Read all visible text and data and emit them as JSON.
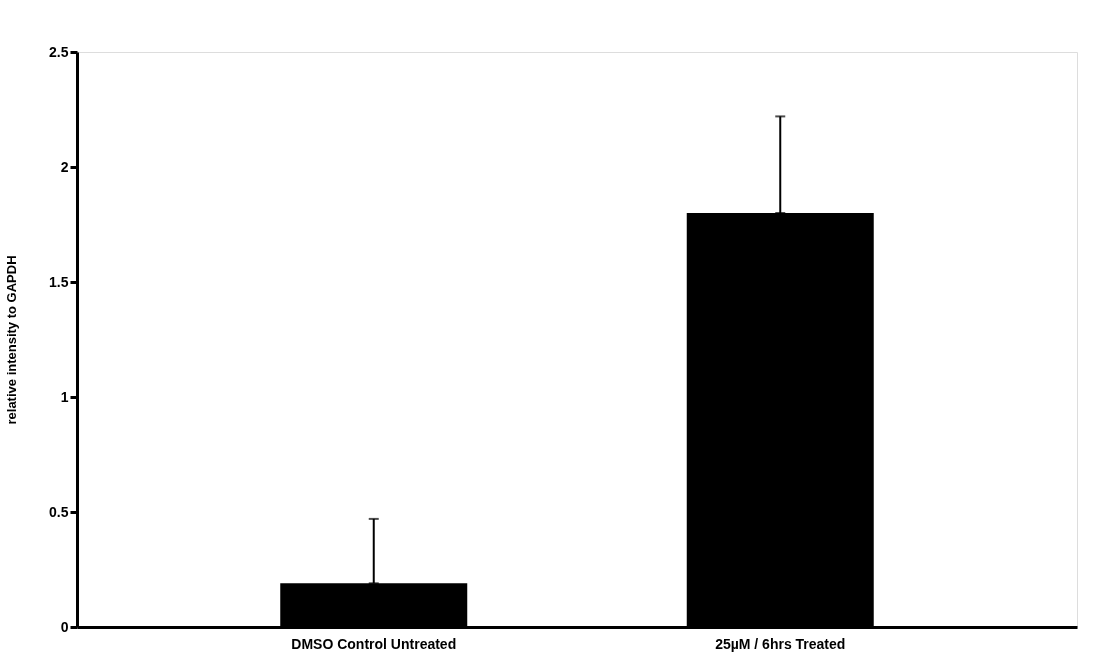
{
  "chart_data": {
    "type": "bar",
    "ylabel": "relative intensity to GAPDH",
    "categories": [
      "DMSO Control Untreated",
      "25µM / 6hrs Treated"
    ],
    "values": [
      0.19,
      1.8
    ],
    "color": "#000000",
    "errors": [
      [
        0.19,
        0.47
      ],
      [
        1.8,
        2.22
      ]
    ],
    "ylim": [
      0,
      2.5
    ],
    "yticks": [
      0,
      0.5,
      1,
      1.5,
      2,
      2.5
    ],
    "grid": false
  }
}
